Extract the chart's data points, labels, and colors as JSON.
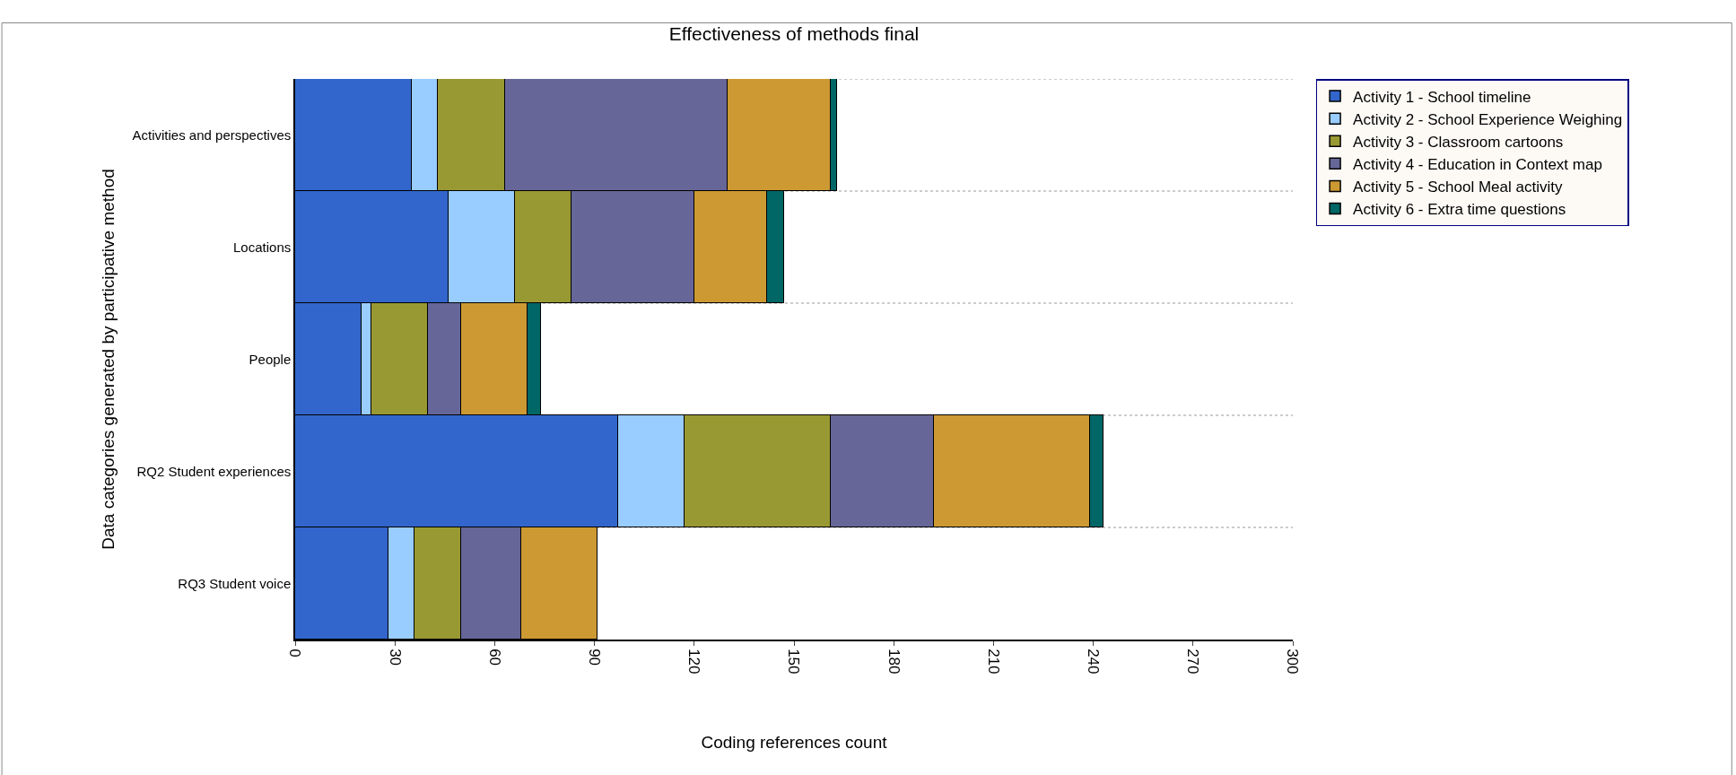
{
  "chart_data": {
    "type": "bar",
    "orientation": "horizontal",
    "stacked": true,
    "title": "Effectiveness of methods final",
    "xlabel": "Coding references count",
    "ylabel": "Data categories generated by participative method",
    "categories": [
      "Activities and perspectives",
      "Locations",
      "People",
      "RQ2 Student experiences",
      "RQ3 Student voice"
    ],
    "series": [
      {
        "name": "Activity 1 - School timeline",
        "color": "#3366cc",
        "values": [
          35,
          46,
          20,
          97,
          28
        ]
      },
      {
        "name": "Activity 2 - School Experience Weighing",
        "color": "#99ccff",
        "values": [
          8,
          20,
          3,
          20,
          8
        ]
      },
      {
        "name": "Activity 3 - Classroom cartoons",
        "color": "#999933",
        "values": [
          20,
          17,
          17,
          44,
          14
        ]
      },
      {
        "name": "Activity 4 - Education in Context map",
        "color": "#666699",
        "values": [
          67,
          37,
          10,
          31,
          18
        ]
      },
      {
        "name": "Activity 5 - School Meal activity",
        "color": "#cc9933",
        "values": [
          31,
          22,
          20,
          47,
          23
        ]
      },
      {
        "name": "Activity 6 - Extra time questions",
        "color": "#006666",
        "values": [
          2,
          5,
          4,
          4,
          null
        ]
      }
    ],
    "xlim": [
      0,
      300
    ],
    "xticks": [
      0,
      30,
      60,
      90,
      120,
      150,
      180,
      210,
      240,
      270,
      300
    ],
    "grid": "y",
    "legend": "right"
  }
}
